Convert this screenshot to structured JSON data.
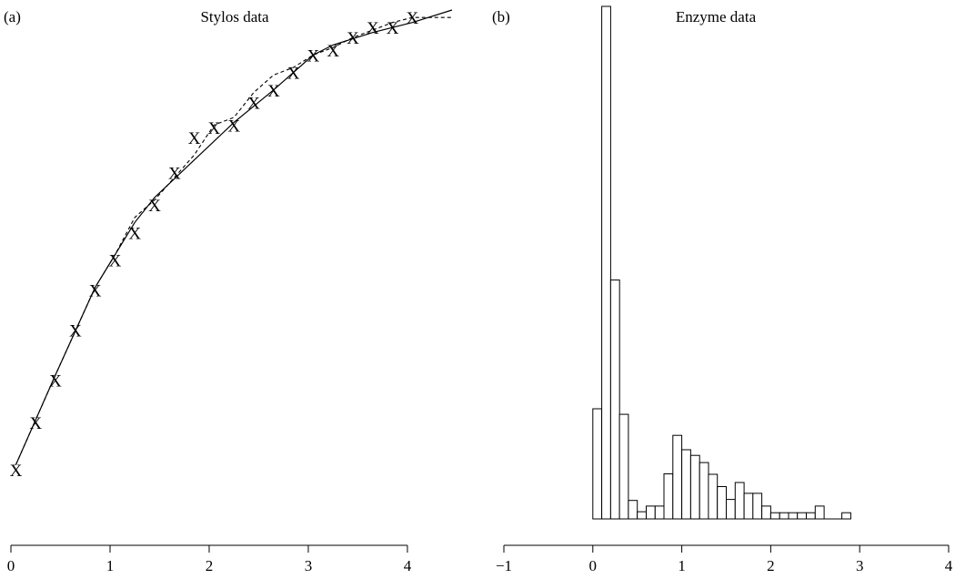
{
  "chart_data": [
    {
      "type": "scatter",
      "panel_label": "(a)",
      "title": "Stylos data",
      "xlim": [
        0,
        4.45
      ],
      "ylim": [
        0,
        1
      ],
      "xticks": [
        "0",
        "1",
        "2",
        "3",
        "4"
      ],
      "marker": "X",
      "points": [
        [
          0.05,
          0.08
        ],
        [
          0.25,
          0.175
        ],
        [
          0.45,
          0.26
        ],
        [
          0.65,
          0.36
        ],
        [
          0.85,
          0.44
        ],
        [
          1.05,
          0.5
        ],
        [
          1.25,
          0.555
        ],
        [
          1.45,
          0.61
        ],
        [
          1.65,
          0.675
        ],
        [
          1.85,
          0.745
        ],
        [
          2.05,
          0.765
        ],
        [
          2.25,
          0.77
        ],
        [
          2.45,
          0.815
        ],
        [
          2.65,
          0.84
        ],
        [
          2.85,
          0.875
        ],
        [
          3.05,
          0.91
        ],
        [
          3.25,
          0.92
        ],
        [
          3.45,
          0.945
        ],
        [
          3.65,
          0.965
        ],
        [
          3.85,
          0.965
        ],
        [
          4.05,
          0.985
        ]
      ],
      "series": [
        {
          "style": "solid",
          "x": [
            0.05,
            0.45,
            0.85,
            1.05,
            1.25,
            1.45,
            1.85,
            2.25,
            2.65,
            3.05,
            3.25,
            3.65,
            4.05,
            4.45
          ],
          "y": [
            0.09,
            0.27,
            0.445,
            0.51,
            0.575,
            0.625,
            0.7,
            0.775,
            0.84,
            0.91,
            0.93,
            0.955,
            0.975,
            1.0
          ]
        },
        {
          "style": "dashed",
          "x": [
            0.05,
            0.45,
            0.85,
            1.05,
            1.25,
            1.45,
            1.85,
            2.05,
            2.25,
            2.45,
            2.65,
            2.85,
            3.05,
            3.25,
            3.45,
            3.65,
            3.85,
            4.05,
            4.45
          ],
          "y": [
            0.09,
            0.27,
            0.445,
            0.51,
            0.585,
            0.62,
            0.71,
            0.77,
            0.785,
            0.835,
            0.87,
            0.885,
            0.91,
            0.925,
            0.945,
            0.96,
            0.975,
            0.985,
            0.985
          ]
        }
      ]
    },
    {
      "type": "bar",
      "panel_label": "(b)",
      "title": "Enzyme data",
      "xlim": [
        -1,
        4
      ],
      "ylim": [
        0,
        1
      ],
      "xticks": [
        "−1",
        "0",
        "1",
        "2",
        "3",
        "4"
      ],
      "bin_width": 0.1,
      "bins": [
        {
          "x0": 0.0,
          "v": 0.215
        },
        {
          "x0": 0.1,
          "v": 1.0
        },
        {
          "x0": 0.2,
          "v": 0.466
        },
        {
          "x0": 0.3,
          "v": 0.204
        },
        {
          "x0": 0.4,
          "v": 0.036
        },
        {
          "x0": 0.5,
          "v": 0.014
        },
        {
          "x0": 0.6,
          "v": 0.025
        },
        {
          "x0": 0.7,
          "v": 0.025
        },
        {
          "x0": 0.8,
          "v": 0.088
        },
        {
          "x0": 0.9,
          "v": 0.163
        },
        {
          "x0": 1.0,
          "v": 0.135
        },
        {
          "x0": 1.1,
          "v": 0.124
        },
        {
          "x0": 1.2,
          "v": 0.11
        },
        {
          "x0": 1.3,
          "v": 0.087
        },
        {
          "x0": 1.4,
          "v": 0.063
        },
        {
          "x0": 1.5,
          "v": 0.038
        },
        {
          "x0": 1.6,
          "v": 0.071
        },
        {
          "x0": 1.7,
          "v": 0.05
        },
        {
          "x0": 1.8,
          "v": 0.05
        },
        {
          "x0": 1.9,
          "v": 0.025
        },
        {
          "x0": 2.0,
          "v": 0.012
        },
        {
          "x0": 2.1,
          "v": 0.012
        },
        {
          "x0": 2.2,
          "v": 0.012
        },
        {
          "x0": 2.3,
          "v": 0.012
        },
        {
          "x0": 2.4,
          "v": 0.012
        },
        {
          "x0": 2.5,
          "v": 0.025
        },
        {
          "x0": 2.8,
          "v": 0.012
        }
      ]
    }
  ]
}
